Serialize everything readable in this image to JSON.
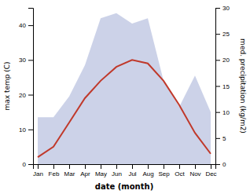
{
  "chart_data": {
    "type": "line",
    "xlabel": "date (month)",
    "ylabel": "max temp (C)",
    "y2label": "med. precipitation (kg/m2)",
    "categories": [
      "Jan",
      "Feb",
      "Mar",
      "Apr",
      "May",
      "Jun",
      "Jul",
      "Aug",
      "Sep",
      "Oct",
      "Nov",
      "Dec"
    ],
    "series": [
      {
        "type": "area",
        "axis": "y2",
        "color": "#aab4d8",
        "values": [
          9,
          9,
          13,
          19,
          28,
          29,
          27,
          28,
          16,
          11,
          17,
          10
        ]
      },
      {
        "type": "line",
        "color": "#c0392b",
        "values": [
          2,
          5,
          12,
          19,
          24,
          28,
          30,
          29,
          24,
          17,
          9,
          3
        ]
      }
    ],
    "ylim": [
      0,
      45
    ],
    "yticks": [
      0,
      10,
      20,
      30,
      40
    ],
    "y2lim": [
      0,
      30
    ],
    "y2ticks": [
      0,
      5,
      10,
      15,
      20,
      25,
      30
    ]
  }
}
